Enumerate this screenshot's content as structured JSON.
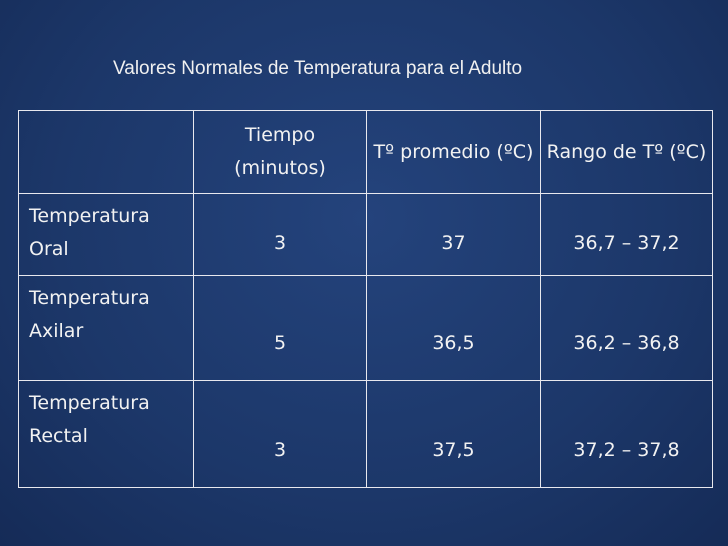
{
  "title": "Valores Normales de Temperatura para el Adulto",
  "table": {
    "header": [
      "Tiempo (minutos)",
      "Tº promedio (ºC)",
      "Rango de Tº (ºC)"
    ],
    "rows": [
      [
        "Temperatura Oral",
        "3",
        "37",
        "36,7 – 37,2"
      ],
      [
        "Temperatura Axilar",
        "5",
        "36,5",
        "36,2 – 36,8"
      ],
      [
        "Temperatura Rectal",
        "3",
        "37,5",
        "37,2 – 37,8"
      ]
    ]
  }
}
